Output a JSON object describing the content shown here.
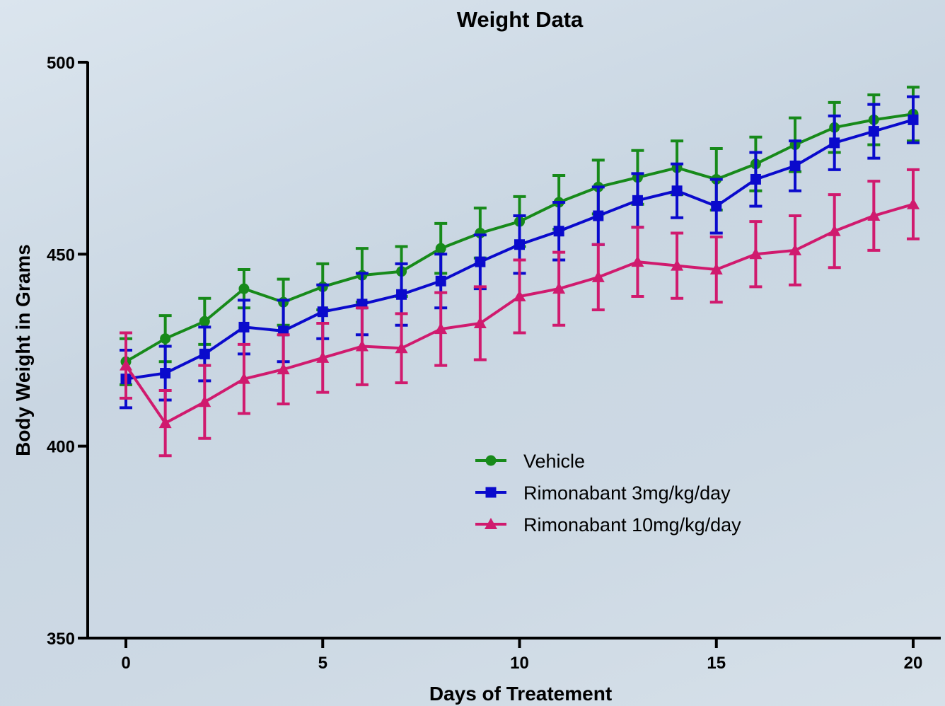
{
  "chart_data": {
    "type": "line",
    "title": "Weight Data",
    "xlabel": "Days of Treatement",
    "ylabel": "Body Weight in Grams",
    "xlim": [
      -2,
      20.8
    ],
    "ylim": [
      350,
      500
    ],
    "xticks": [
      0,
      5,
      10,
      15,
      20
    ],
    "yticks": [
      350,
      400,
      450,
      500
    ],
    "grid": false,
    "legend_position": "center-right",
    "series": [
      {
        "name": "Vehicle",
        "color": "#178a1a",
        "marker": "circle",
        "x": [
          0,
          1,
          2,
          3,
          4,
          5,
          6,
          7,
          8,
          9,
          10,
          11,
          12,
          13,
          14,
          15,
          16,
          17,
          18,
          19,
          20
        ],
        "y": [
          422,
          428,
          432.5,
          441,
          437.5,
          441.5,
          444.5,
          445.5,
          451.5,
          455.5,
          458.5,
          463.5,
          467.5,
          470,
          472.5,
          469.5,
          473.5,
          478.5,
          483,
          485,
          486.5
        ],
        "error": [
          6,
          6,
          6,
          5,
          6,
          6,
          7,
          6.5,
          6.5,
          6.5,
          6.5,
          7,
          7,
          7,
          7,
          8,
          7,
          7,
          6.5,
          6.5,
          7
        ]
      },
      {
        "name": "Rimonabant 3mg/kg/day",
        "color": "#0a0acc",
        "marker": "square",
        "x": [
          0,
          1,
          2,
          3,
          4,
          5,
          6,
          7,
          8,
          9,
          10,
          11,
          12,
          13,
          14,
          15,
          16,
          17,
          18,
          19,
          20
        ],
        "y": [
          417.5,
          419,
          424,
          431,
          430,
          435,
          437,
          439.5,
          443,
          448,
          452.5,
          456,
          460,
          464,
          466.5,
          462.5,
          469.5,
          473,
          479,
          482,
          485
        ],
        "error": [
          7.5,
          7,
          7,
          7,
          8,
          7,
          8,
          8,
          7,
          7,
          7.5,
          7.5,
          7.5,
          7,
          7,
          7,
          7,
          6.5,
          7,
          7,
          6
        ]
      },
      {
        "name": "Rimonabant 10mg/kg/day",
        "color": "#d01a6e",
        "marker": "triangle",
        "x": [
          0,
          1,
          2,
          3,
          4,
          5,
          6,
          7,
          8,
          9,
          10,
          11,
          12,
          13,
          14,
          15,
          16,
          17,
          18,
          19,
          20
        ],
        "y": [
          421,
          406,
          411.5,
          417.5,
          420,
          423,
          426,
          425.5,
          430.5,
          432,
          439,
          441,
          444,
          448,
          447,
          446,
          450,
          451,
          456,
          460,
          463
        ],
        "error": [
          8.5,
          8.5,
          9.5,
          9,
          9,
          9,
          10,
          9,
          9.5,
          9.5,
          9.5,
          9.5,
          8.5,
          9,
          8.5,
          8.5,
          8.5,
          9,
          9.5,
          9,
          9
        ]
      }
    ]
  }
}
